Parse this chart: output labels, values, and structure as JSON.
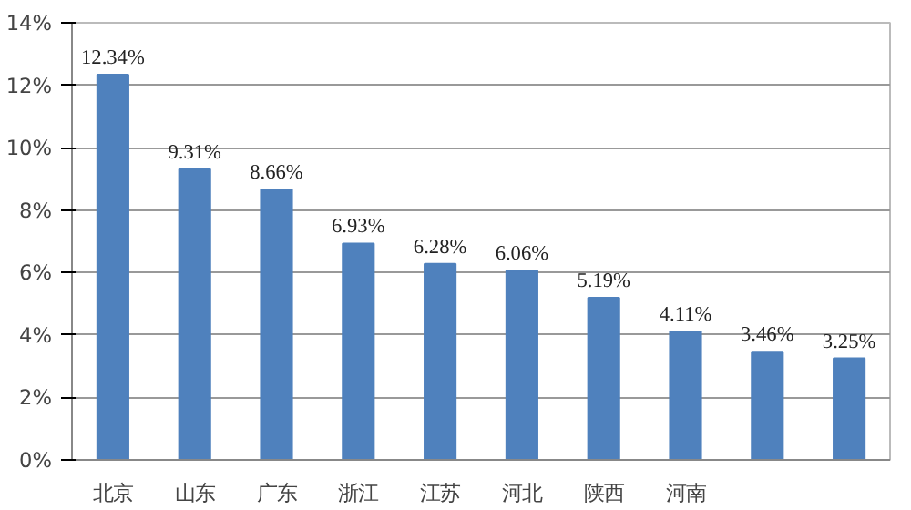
{
  "chart_data": {
    "type": "bar",
    "categories": [
      "北京",
      "山东",
      "广东",
      "浙江",
      "江苏",
      "河北",
      "陕西",
      "河南",
      null,
      null
    ],
    "values": [
      12.34,
      9.31,
      8.66,
      6.93,
      6.28,
      6.06,
      5.19,
      4.11,
      3.46,
      3.25
    ],
    "value_labels": [
      "12.34%",
      "9.31%",
      "8.66%",
      "6.93%",
      "6.28%",
      "6.06%",
      "5.19%",
      "4.11%",
      "3.46%",
      "3.25%"
    ],
    "color": "#4f81bd",
    "ylim": [
      0,
      14
    ],
    "yticks": [
      {
        "value": 0,
        "label": "0%"
      },
      {
        "value": 2,
        "label": "2%"
      },
      {
        "value": 4,
        "label": "4%"
      },
      {
        "value": 6,
        "label": "6%"
      },
      {
        "value": 8,
        "label": "8%"
      },
      {
        "value": 10,
        "label": "10%"
      },
      {
        "value": 12,
        "label": "12%"
      },
      {
        "value": 14,
        "label": "14%"
      }
    ],
    "grid": "y"
  }
}
